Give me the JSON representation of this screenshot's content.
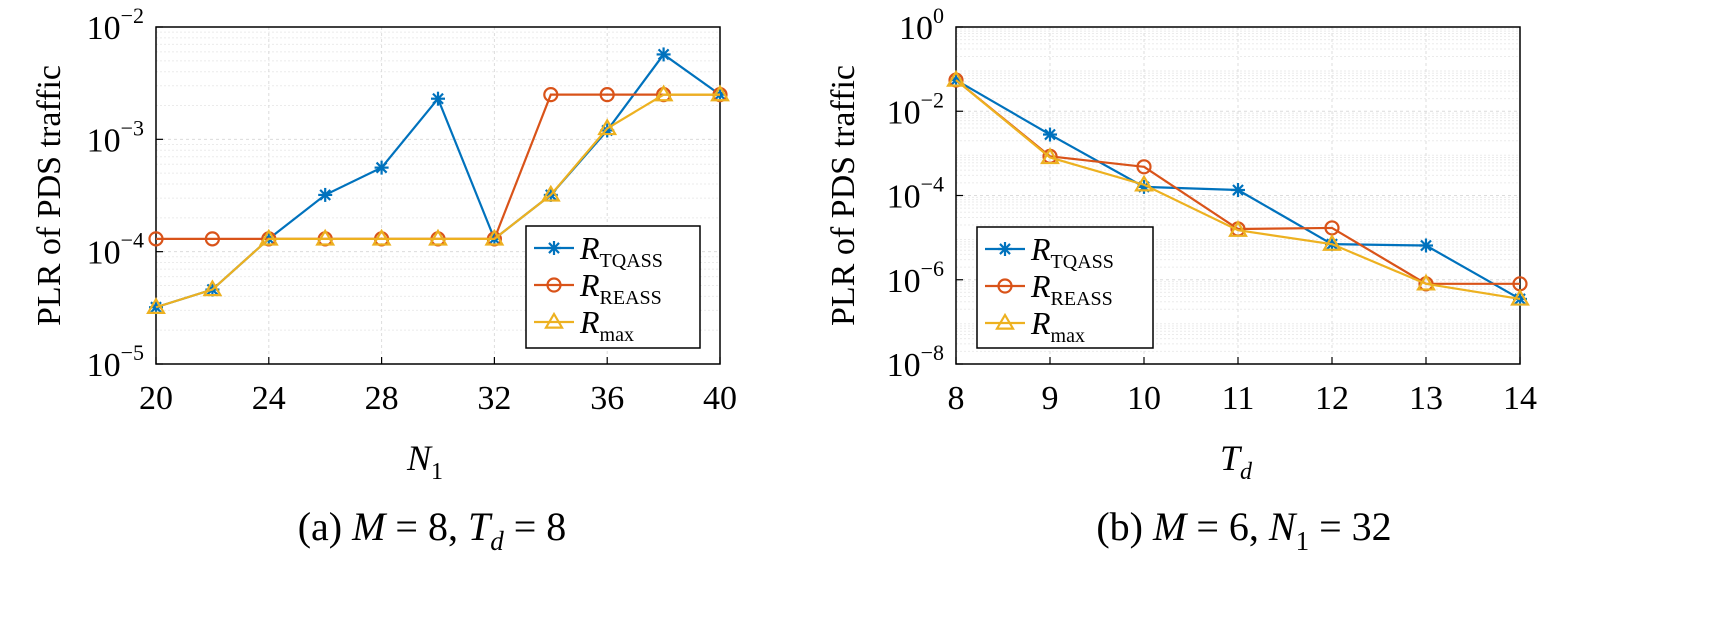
{
  "chart_data": [
    {
      "type": "line",
      "caption": {
        "prefix": "(a) ",
        "var1": "M",
        "eq1": " = 8, ",
        "var2": "T",
        "sub2": "d",
        "eq2": " = 8"
      },
      "ylabel": "PLR of PDS traffic",
      "xlabel": {
        "main": "N",
        "sub": "1"
      },
      "x_scale": "linear",
      "y_scale": "log",
      "xlim": [
        20,
        40
      ],
      "ylim": [
        1e-05,
        0.01
      ],
      "xticks": [
        20,
        24,
        28,
        32,
        36,
        40
      ],
      "yticks": [
        {
          "base": "10",
          "exp": "−5",
          "value": 1e-05
        },
        {
          "base": "10",
          "exp": "−4",
          "value": 0.0001
        },
        {
          "base": "10",
          "exp": "−3",
          "value": 0.001
        },
        {
          "base": "10",
          "exp": "−2",
          "value": 0.01
        }
      ],
      "grid": true,
      "legend_position": "bottom-right",
      "series": [
        {
          "name": "R",
          "sub": "TQASS",
          "color": "#0072BD",
          "marker": "asterisk",
          "x": [
            20,
            22,
            24,
            26,
            28,
            30,
            32,
            34,
            36,
            38,
            40
          ],
          "y": [
            3.2e-05,
            4.6e-05,
            0.00013,
            0.00032,
            0.00056,
            0.0023,
            0.00013,
            0.00032,
            0.0012,
            0.0057,
            0.0025
          ]
        },
        {
          "name": "R",
          "sub": "REASS",
          "color": "#D95319",
          "marker": "circle",
          "x": [
            20,
            22,
            24,
            26,
            28,
            30,
            32,
            34,
            36,
            38,
            40
          ],
          "y": [
            0.00013,
            0.00013,
            0.00013,
            0.00013,
            0.00013,
            0.00013,
            0.00013,
            0.0025,
            0.0025,
            0.0025,
            0.0025
          ]
        },
        {
          "name": "R",
          "sub": "max",
          "color": "#EDB120",
          "marker": "triangle",
          "x": [
            20,
            22,
            24,
            26,
            28,
            30,
            32,
            34,
            36,
            38,
            40
          ],
          "y": [
            3.2e-05,
            4.6e-05,
            0.00013,
            0.00013,
            0.00013,
            0.00013,
            0.00013,
            0.00032,
            0.00125,
            0.0025,
            0.0025
          ]
        }
      ]
    },
    {
      "type": "line",
      "caption": {
        "prefix": "(b) ",
        "var1": "M",
        "eq1": " = 6, ",
        "var2": "N",
        "sub2": "1",
        "eq2": " = 32"
      },
      "ylabel": "PLR of PDS traffic",
      "xlabel": {
        "main": "T",
        "sub": "d"
      },
      "x_scale": "linear",
      "y_scale": "log",
      "xlim": [
        8,
        14
      ],
      "ylim": [
        1e-08,
        1
      ],
      "xticks": [
        8,
        9,
        10,
        11,
        12,
        13,
        14
      ],
      "yticks": [
        {
          "base": "10",
          "exp": "−8",
          "value": 1e-08
        },
        {
          "base": "10",
          "exp": "−6",
          "value": 1e-06
        },
        {
          "base": "10",
          "exp": "−4",
          "value": 0.0001
        },
        {
          "base": "10",
          "exp": "−2",
          "value": 0.01
        },
        {
          "base": "10",
          "exp": "0",
          "value": 1
        }
      ],
      "grid": true,
      "legend_position": "bottom-left",
      "series": [
        {
          "name": "R",
          "sub": "TQASS",
          "color": "#0072BD",
          "marker": "asterisk",
          "x": [
            8,
            9,
            10,
            11,
            12,
            13,
            14
          ],
          "y": [
            0.055,
            0.0028,
            0.00016,
            0.000135,
            7e-06,
            6.5e-06,
            3.5e-07
          ]
        },
        {
          "name": "R",
          "sub": "REASS",
          "color": "#D95319",
          "marker": "circle",
          "x": [
            8,
            9,
            10,
            11,
            12,
            13,
            14
          ],
          "y": [
            0.055,
            0.00085,
            0.00048,
            1.6e-05,
            1.7e-05,
            8e-07,
            8e-07
          ]
        },
        {
          "name": "R",
          "sub": "max",
          "color": "#EDB120",
          "marker": "triangle",
          "x": [
            8,
            9,
            10,
            11,
            12,
            13,
            14
          ],
          "y": [
            0.055,
            0.0008,
            0.00018,
            1.5e-05,
            7e-06,
            8e-07,
            3.5e-07
          ]
        }
      ]
    }
  ]
}
